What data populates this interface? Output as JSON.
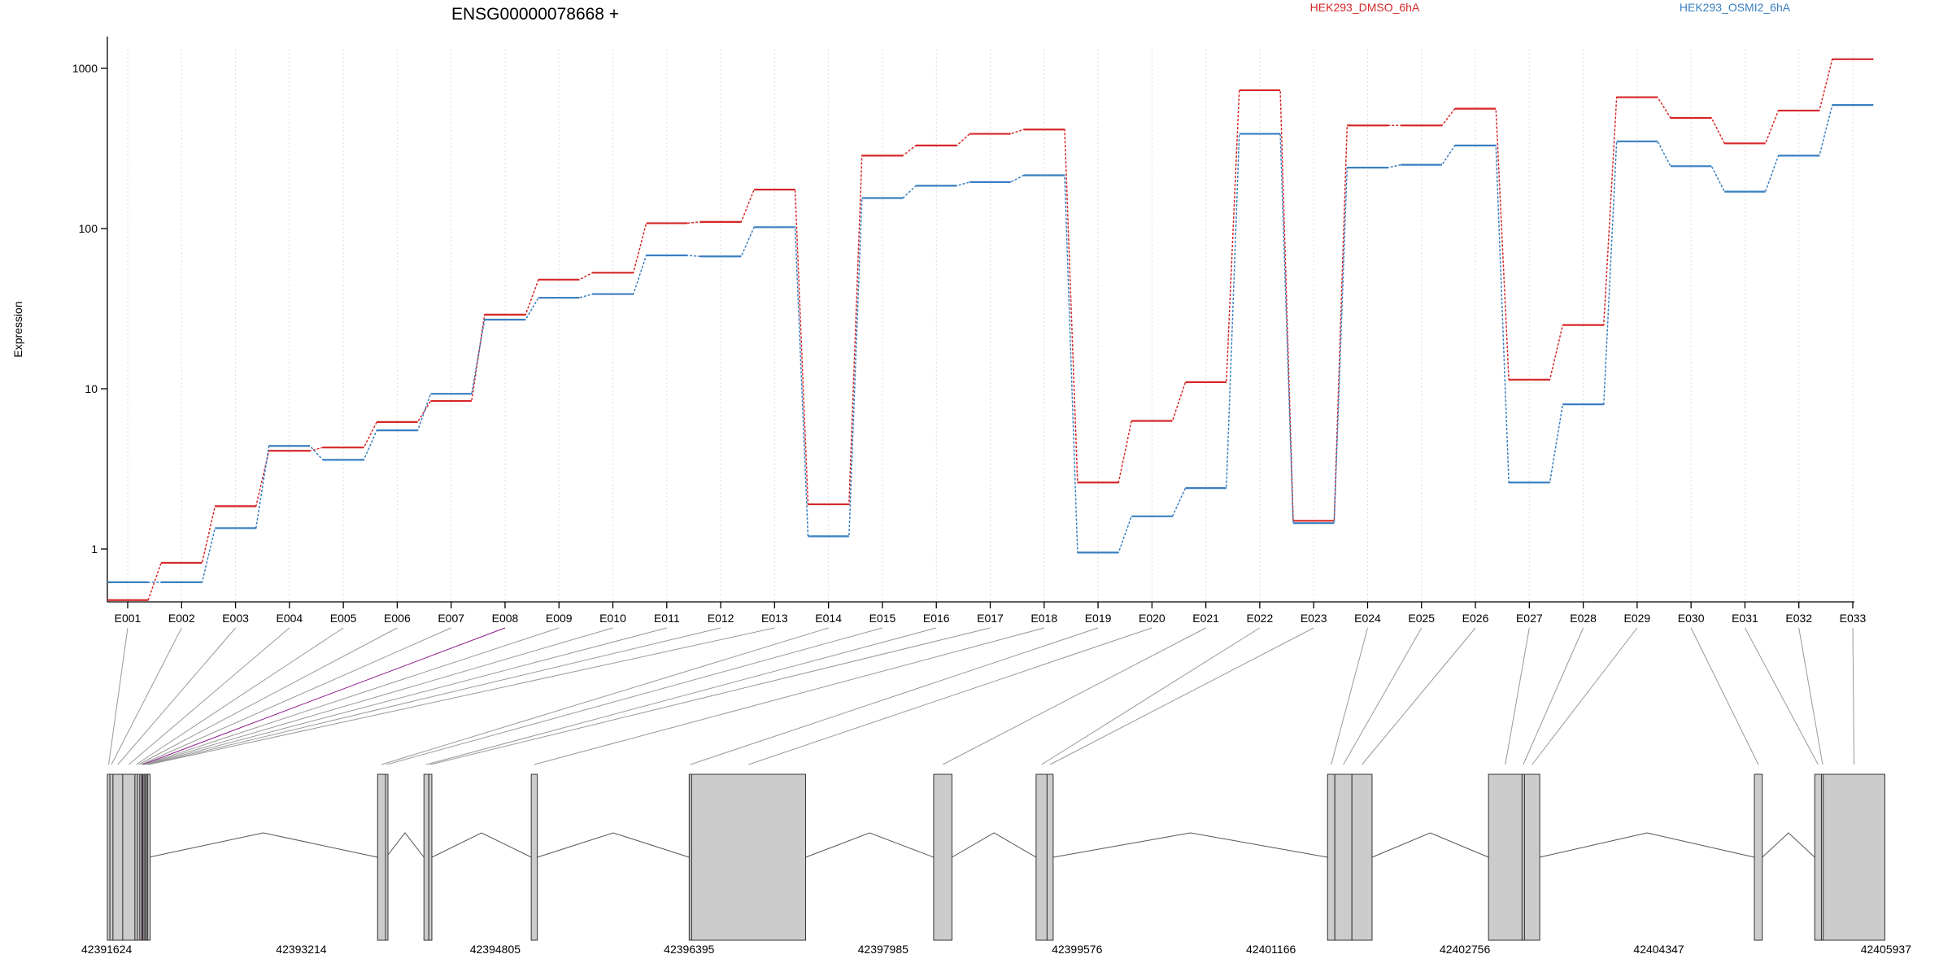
{
  "chart_data": {
    "type": "line",
    "title": "ENSG00000078668 +",
    "ylabel": "Expression",
    "xlabel": "",
    "y_scale": "log",
    "ylim": [
      0.4,
      1400
    ],
    "y_ticks": [
      "1",
      "10",
      "100",
      "1000"
    ],
    "y_tick_values": [
      1,
      10,
      100,
      1000
    ],
    "grid": "vertical dotted lines at exon centers",
    "legend_placement": "top",
    "categories": [
      "E001",
      "E002",
      "E003",
      "E004",
      "E005",
      "E006",
      "E007",
      "E008",
      "E009",
      "E010",
      "E011",
      "E012",
      "E013",
      "E014",
      "E015",
      "E016",
      "E017",
      "E018",
      "E019",
      "E020",
      "E021",
      "E022",
      "E023",
      "E024",
      "E025",
      "E026",
      "E027",
      "E028",
      "E029",
      "E030",
      "E031",
      "E032",
      "E033"
    ],
    "series": [
      {
        "name": "HEK293_DMSO_6hA",
        "color": "#d62728",
        "values": [
          0.48,
          0.82,
          1.85,
          4.1,
          4.3,
          6.2,
          8.4,
          29,
          48,
          53,
          108,
          110,
          175,
          1.9,
          285,
          330,
          390,
          415,
          2.6,
          6.3,
          11,
          730,
          1.5,
          440,
          440,
          560,
          11.4,
          25,
          660,
          490,
          340,
          545,
          1140
        ]
      },
      {
        "name": "HEK293_OSMI2_6hA",
        "color": "#3a7fc1",
        "values": [
          0.62,
          0.62,
          1.35,
          4.4,
          3.6,
          5.5,
          9.3,
          27,
          37,
          39,
          68,
          67,
          102,
          1.2,
          155,
          185,
          195,
          215,
          0.95,
          1.6,
          2.4,
          390,
          1.45,
          240,
          250,
          330,
          2.6,
          8,
          350,
          245,
          170,
          285,
          590
        ]
      }
    ],
    "genomic_axis": {
      "ticks": [
        "42391624",
        "42393214",
        "42394805",
        "42396395",
        "42397985",
        "42399576",
        "42401166",
        "42402756",
        "42404347",
        "42405937"
      ],
      "start": 42391624,
      "end": 42405937
    },
    "gene_model": {
      "exons": [
        {
          "start": 42391624,
          "end": 42391645
        },
        {
          "start": 42391645,
          "end": 42391670
        },
        {
          "start": 42391670,
          "end": 42391750
        },
        {
          "start": 42391750,
          "end": 42391850
        },
        {
          "start": 42391850,
          "end": 42391870
        },
        {
          "start": 42391870,
          "end": 42391890
        },
        {
          "start": 42391890,
          "end": 42391905
        },
        {
          "start": 42391905,
          "end": 42391915
        },
        {
          "start": 42391915,
          "end": 42391925
        },
        {
          "start": 42391925,
          "end": 42391935
        },
        {
          "start": 42391935,
          "end": 42391945
        },
        {
          "start": 42391945,
          "end": 42391955
        },
        {
          "start": 42391955,
          "end": 42391965
        },
        {
          "start": 42393840,
          "end": 42393905
        },
        {
          "start": 42393905,
          "end": 42393910
        },
        {
          "start": 42394220,
          "end": 42394260
        },
        {
          "start": 42394260,
          "end": 42394285
        },
        {
          "start": 42395100,
          "end": 42395150
        },
        {
          "start": 42396395,
          "end": 42396415
        },
        {
          "start": 42396415,
          "end": 42397350
        },
        {
          "start": 42398400,
          "end": 42398550
        },
        {
          "start": 42399240,
          "end": 42399330
        },
        {
          "start": 42399330,
          "end": 42399380
        },
        {
          "start": 42401630,
          "end": 42401690
        },
        {
          "start": 42401690,
          "end": 42401830
        },
        {
          "start": 42401830,
          "end": 42401995
        },
        {
          "start": 42402950,
          "end": 42403225
        },
        {
          "start": 42403225,
          "end": 42403245
        },
        {
          "start": 42403245,
          "end": 42403370
        },
        {
          "start": 42405130,
          "end": 42405195
        },
        {
          "start": 42405625,
          "end": 42405680
        },
        {
          "start": 42405680,
          "end": 42405695
        },
        {
          "start": 42405695,
          "end": 42406200
        }
      ],
      "highlighted_exon_index": 7,
      "highlight_color": "#8b1a8b"
    }
  }
}
